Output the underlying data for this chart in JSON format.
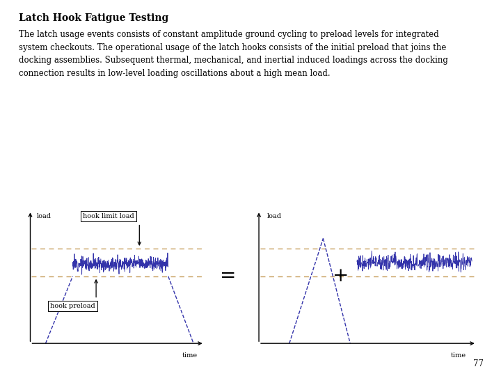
{
  "title": "Latch Hook Fatigue Testing",
  "title_fontsize": 10,
  "body_text": "The latch usage events consists of constant amplitude ground cycling to preload levels for integrated\nsystem checkouts. The operational usage of the latch hooks consists of the initial preload that joins the\ndocking assemblies. Subsequent thermal, mechanical, and inertial induced loadings across the docking\nconnection results in low-level loading oscillations about a high mean load.",
  "body_fontsize": 8.5,
  "background_color": "#ffffff",
  "page_number": "77",
  "dashed_color": "#c8a060",
  "line_color": "#3333aa",
  "label_fontsize": 7,
  "annotation_fontsize": 7
}
